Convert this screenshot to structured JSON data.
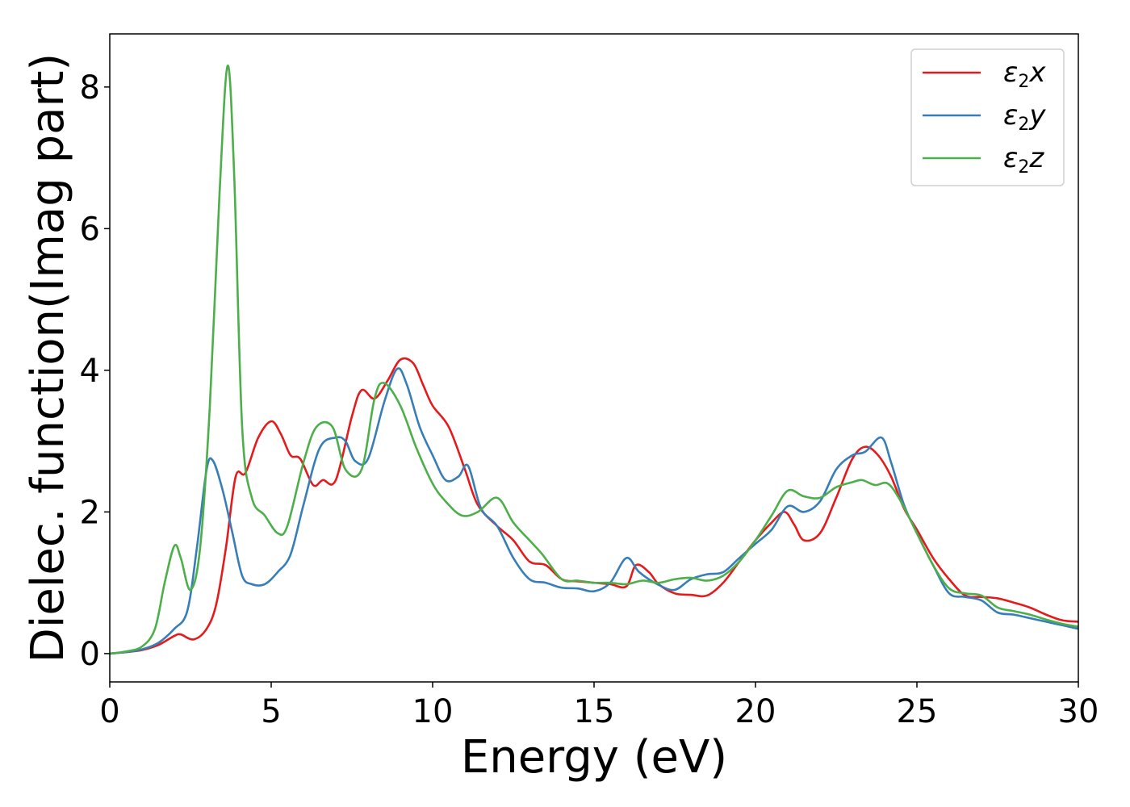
{
  "chart_data": {
    "type": "line",
    "title": "",
    "xlabel": "Energy (eV)",
    "ylabel": "Dielec. function(Imag part)",
    "xlim": [
      0,
      30
    ],
    "ylim": [
      -0.4,
      8.75
    ],
    "xticks": [
      0,
      5,
      10,
      15,
      20,
      25,
      30
    ],
    "yticks": [
      0,
      2,
      4,
      6,
      8
    ],
    "grid": false,
    "legend_position": "top-right",
    "legend": [
      {
        "prefix": "ε",
        "sub": "2",
        "suffix": "x",
        "color": "#e41a1c"
      },
      {
        "prefix": "ε",
        "sub": "2",
        "suffix": "y",
        "color": "#377eb8"
      },
      {
        "prefix": "ε",
        "sub": "2",
        "suffix": "z",
        "color": "#4daf4a"
      }
    ],
    "series": [
      {
        "color": "#e41a1c",
        "points": [
          [
            0,
            0
          ],
          [
            0.5,
            0.02
          ],
          [
            1,
            0.05
          ],
          [
            1.5,
            0.12
          ],
          [
            2,
            0.25
          ],
          [
            2.2,
            0.27
          ],
          [
            2.6,
            0.2
          ],
          [
            3,
            0.35
          ],
          [
            3.3,
            0.7
          ],
          [
            3.6,
            1.5
          ],
          [
            3.9,
            2.5
          ],
          [
            4.2,
            2.55
          ],
          [
            4.6,
            3.05
          ],
          [
            5,
            3.28
          ],
          [
            5.3,
            3.1
          ],
          [
            5.6,
            2.8
          ],
          [
            5.9,
            2.75
          ],
          [
            6.3,
            2.38
          ],
          [
            6.6,
            2.45
          ],
          [
            7,
            2.45
          ],
          [
            7.5,
            3.35
          ],
          [
            7.8,
            3.72
          ],
          [
            8.2,
            3.6
          ],
          [
            8.6,
            3.85
          ],
          [
            9,
            4.15
          ],
          [
            9.4,
            4.1
          ],
          [
            9.7,
            3.8
          ],
          [
            10,
            3.5
          ],
          [
            10.5,
            3.2
          ],
          [
            11,
            2.6
          ],
          [
            11.4,
            2.1
          ],
          [
            12,
            1.8
          ],
          [
            12.5,
            1.6
          ],
          [
            13,
            1.3
          ],
          [
            13.5,
            1.25
          ],
          [
            14,
            1.05
          ],
          [
            14.5,
            1.02
          ],
          [
            15,
            1.0
          ],
          [
            15.5,
            0.98
          ],
          [
            16,
            0.95
          ],
          [
            16.3,
            1.25
          ],
          [
            16.7,
            1.15
          ],
          [
            17,
            0.98
          ],
          [
            17.5,
            0.85
          ],
          [
            18,
            0.83
          ],
          [
            18.5,
            0.82
          ],
          [
            19,
            1.0
          ],
          [
            19.5,
            1.3
          ],
          [
            20,
            1.6
          ],
          [
            20.5,
            1.85
          ],
          [
            20.9,
            2.0
          ],
          [
            21.2,
            1.82
          ],
          [
            21.5,
            1.6
          ],
          [
            22,
            1.7
          ],
          [
            22.5,
            2.2
          ],
          [
            23,
            2.75
          ],
          [
            23.4,
            2.92
          ],
          [
            23.8,
            2.8
          ],
          [
            24.2,
            2.5
          ],
          [
            24.6,
            2.05
          ],
          [
            25,
            1.75
          ],
          [
            25.5,
            1.35
          ],
          [
            26,
            1.05
          ],
          [
            26.5,
            0.82
          ],
          [
            27,
            0.8
          ],
          [
            27.5,
            0.78
          ],
          [
            28,
            0.72
          ],
          [
            28.5,
            0.65
          ],
          [
            29,
            0.55
          ],
          [
            29.5,
            0.47
          ],
          [
            30,
            0.45
          ]
        ]
      },
      {
        "color": "#377eb8",
        "points": [
          [
            0,
            0
          ],
          [
            0.5,
            0.02
          ],
          [
            1,
            0.06
          ],
          [
            1.5,
            0.15
          ],
          [
            2,
            0.35
          ],
          [
            2.4,
            0.6
          ],
          [
            2.7,
            1.5
          ],
          [
            3,
            2.6
          ],
          [
            3.2,
            2.72
          ],
          [
            3.5,
            2.3
          ],
          [
            3.8,
            1.7
          ],
          [
            4.1,
            1.1
          ],
          [
            4.4,
            0.98
          ],
          [
            4.8,
            0.98
          ],
          [
            5.2,
            1.15
          ],
          [
            5.6,
            1.4
          ],
          [
            6,
            2.1
          ],
          [
            6.5,
            2.9
          ],
          [
            7,
            3.05
          ],
          [
            7.3,
            3.0
          ],
          [
            7.6,
            2.72
          ],
          [
            8,
            2.75
          ],
          [
            8.5,
            3.55
          ],
          [
            8.9,
            4.02
          ],
          [
            9.2,
            3.8
          ],
          [
            9.6,
            3.2
          ],
          [
            10,
            2.8
          ],
          [
            10.4,
            2.45
          ],
          [
            10.8,
            2.5
          ],
          [
            11.1,
            2.65
          ],
          [
            11.5,
            2.05
          ],
          [
            12,
            1.8
          ],
          [
            12.5,
            1.35
          ],
          [
            13,
            1.05
          ],
          [
            13.5,
            1.0
          ],
          [
            14,
            0.93
          ],
          [
            14.5,
            0.92
          ],
          [
            15,
            0.88
          ],
          [
            15.5,
            1.0
          ],
          [
            16,
            1.35
          ],
          [
            16.4,
            1.15
          ],
          [
            17,
            0.97
          ],
          [
            17.5,
            0.9
          ],
          [
            18,
            1.05
          ],
          [
            18.5,
            1.12
          ],
          [
            19,
            1.15
          ],
          [
            19.5,
            1.35
          ],
          [
            20,
            1.55
          ],
          [
            20.5,
            1.75
          ],
          [
            21,
            2.08
          ],
          [
            21.5,
            2.0
          ],
          [
            22,
            2.15
          ],
          [
            22.5,
            2.6
          ],
          [
            23,
            2.8
          ],
          [
            23.4,
            2.85
          ],
          [
            23.9,
            3.05
          ],
          [
            24.2,
            2.7
          ],
          [
            24.6,
            2.1
          ],
          [
            25,
            1.7
          ],
          [
            25.5,
            1.25
          ],
          [
            26,
            0.85
          ],
          [
            26.5,
            0.8
          ],
          [
            27,
            0.75
          ],
          [
            27.5,
            0.58
          ],
          [
            28,
            0.55
          ],
          [
            28.5,
            0.5
          ],
          [
            29,
            0.45
          ],
          [
            29.5,
            0.4
          ],
          [
            30,
            0.35
          ]
        ]
      },
      {
        "color": "#4daf4a",
        "points": [
          [
            0,
            0
          ],
          [
            0.5,
            0.03
          ],
          [
            1,
            0.1
          ],
          [
            1.4,
            0.35
          ],
          [
            1.7,
            1.0
          ],
          [
            2,
            1.52
          ],
          [
            2.2,
            1.35
          ],
          [
            2.5,
            0.9
          ],
          [
            2.8,
            1.5
          ],
          [
            3.1,
            3.5
          ],
          [
            3.4,
            6.5
          ],
          [
            3.65,
            8.3
          ],
          [
            3.85,
            6.8
          ],
          [
            4.1,
            3.2
          ],
          [
            4.4,
            2.2
          ],
          [
            4.8,
            1.95
          ],
          [
            5.2,
            1.7
          ],
          [
            5.5,
            1.8
          ],
          [
            6,
            2.7
          ],
          [
            6.4,
            3.2
          ],
          [
            6.9,
            3.2
          ],
          [
            7.3,
            2.6
          ],
          [
            7.8,
            2.6
          ],
          [
            8.2,
            3.6
          ],
          [
            8.5,
            3.82
          ],
          [
            9,
            3.5
          ],
          [
            9.5,
            2.9
          ],
          [
            10,
            2.4
          ],
          [
            10.4,
            2.15
          ],
          [
            10.9,
            1.95
          ],
          [
            11.4,
            2.0
          ],
          [
            12,
            2.2
          ],
          [
            12.5,
            1.85
          ],
          [
            13,
            1.6
          ],
          [
            13.4,
            1.4
          ],
          [
            14,
            1.05
          ],
          [
            14.5,
            1.03
          ],
          [
            15,
            1.0
          ],
          [
            15.5,
            1.0
          ],
          [
            16,
            0.98
          ],
          [
            16.5,
            1.03
          ],
          [
            17,
            1.0
          ],
          [
            17.5,
            1.05
          ],
          [
            18,
            1.07
          ],
          [
            18.5,
            1.03
          ],
          [
            19,
            1.1
          ],
          [
            19.5,
            1.3
          ],
          [
            20,
            1.6
          ],
          [
            20.5,
            1.95
          ],
          [
            21,
            2.3
          ],
          [
            21.5,
            2.22
          ],
          [
            22,
            2.2
          ],
          [
            22.5,
            2.35
          ],
          [
            23,
            2.42
          ],
          [
            23.3,
            2.45
          ],
          [
            23.7,
            2.38
          ],
          [
            24.1,
            2.4
          ],
          [
            24.5,
            2.15
          ],
          [
            25,
            1.7
          ],
          [
            25.5,
            1.25
          ],
          [
            26,
            0.92
          ],
          [
            26.5,
            0.85
          ],
          [
            27,
            0.82
          ],
          [
            27.5,
            0.65
          ],
          [
            28,
            0.6
          ],
          [
            28.5,
            0.55
          ],
          [
            29,
            0.48
          ],
          [
            29.5,
            0.42
          ],
          [
            30,
            0.38
          ]
        ]
      }
    ]
  }
}
